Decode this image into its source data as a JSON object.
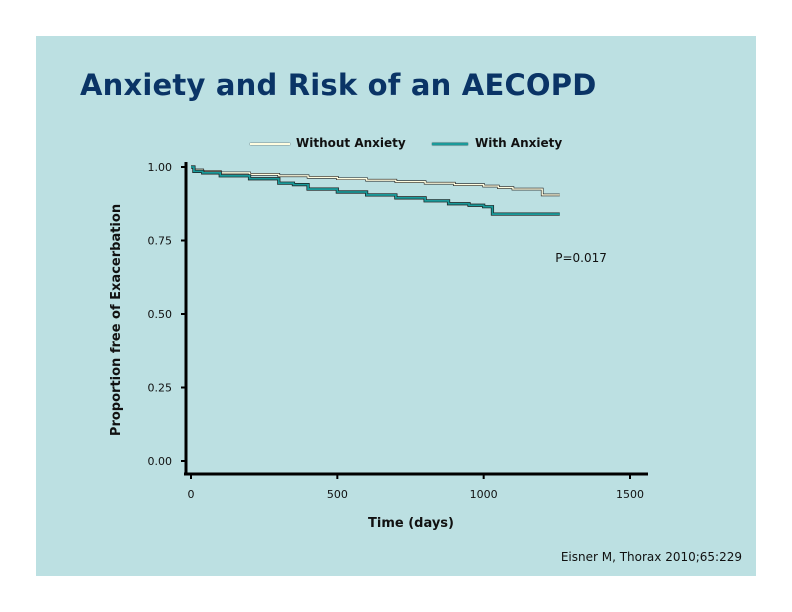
{
  "slide": {
    "title": "Anxiety and Risk of an AECOPD",
    "citation": "Eisner M, Thorax 2010;65:229",
    "background": "#bce0e2",
    "title_color": "#0a3466"
  },
  "chart_data": {
    "type": "line",
    "title": "",
    "xlabel": "Time (days)",
    "ylabel": "Proportion free of Exacerbation",
    "xlim": [
      0,
      1500
    ],
    "ylim": [
      0,
      1
    ],
    "xticks": [
      0,
      500,
      1000,
      1500
    ],
    "xtick_labels": [
      "0",
      "500",
      "1000",
      "1500"
    ],
    "yticks": [
      0,
      0.25,
      0.5,
      0.75,
      1
    ],
    "ytick_labels": [
      "0.00",
      "0.25",
      "0.50",
      "0.75",
      "1.00"
    ],
    "grid": false,
    "legend_position": "top",
    "annotations": [
      {
        "text": "P=0.017",
        "x": 1330,
        "y": 0.69
      }
    ],
    "series": [
      {
        "name": "Without Anxiety",
        "color": "#fffde0",
        "step": true,
        "x": [
          0,
          10,
          40,
          100,
          200,
          300,
          400,
          500,
          600,
          700,
          800,
          900,
          1000,
          1050,
          1100,
          1200,
          1260
        ],
        "y": [
          1.0,
          0.99,
          0.985,
          0.98,
          0.975,
          0.97,
          0.965,
          0.96,
          0.955,
          0.95,
          0.945,
          0.94,
          0.935,
          0.93,
          0.925,
          0.905,
          0.905
        ]
      },
      {
        "name": "With Anxiety",
        "color": "#1a9a9a",
        "step": true,
        "x": [
          0,
          10,
          40,
          100,
          200,
          300,
          350,
          400,
          500,
          600,
          700,
          800,
          880,
          950,
          1000,
          1030,
          1100,
          1260
        ],
        "y": [
          1.0,
          0.985,
          0.98,
          0.97,
          0.96,
          0.945,
          0.94,
          0.925,
          0.915,
          0.905,
          0.895,
          0.885,
          0.875,
          0.87,
          0.865,
          0.84,
          0.84,
          0.84
        ]
      }
    ]
  }
}
